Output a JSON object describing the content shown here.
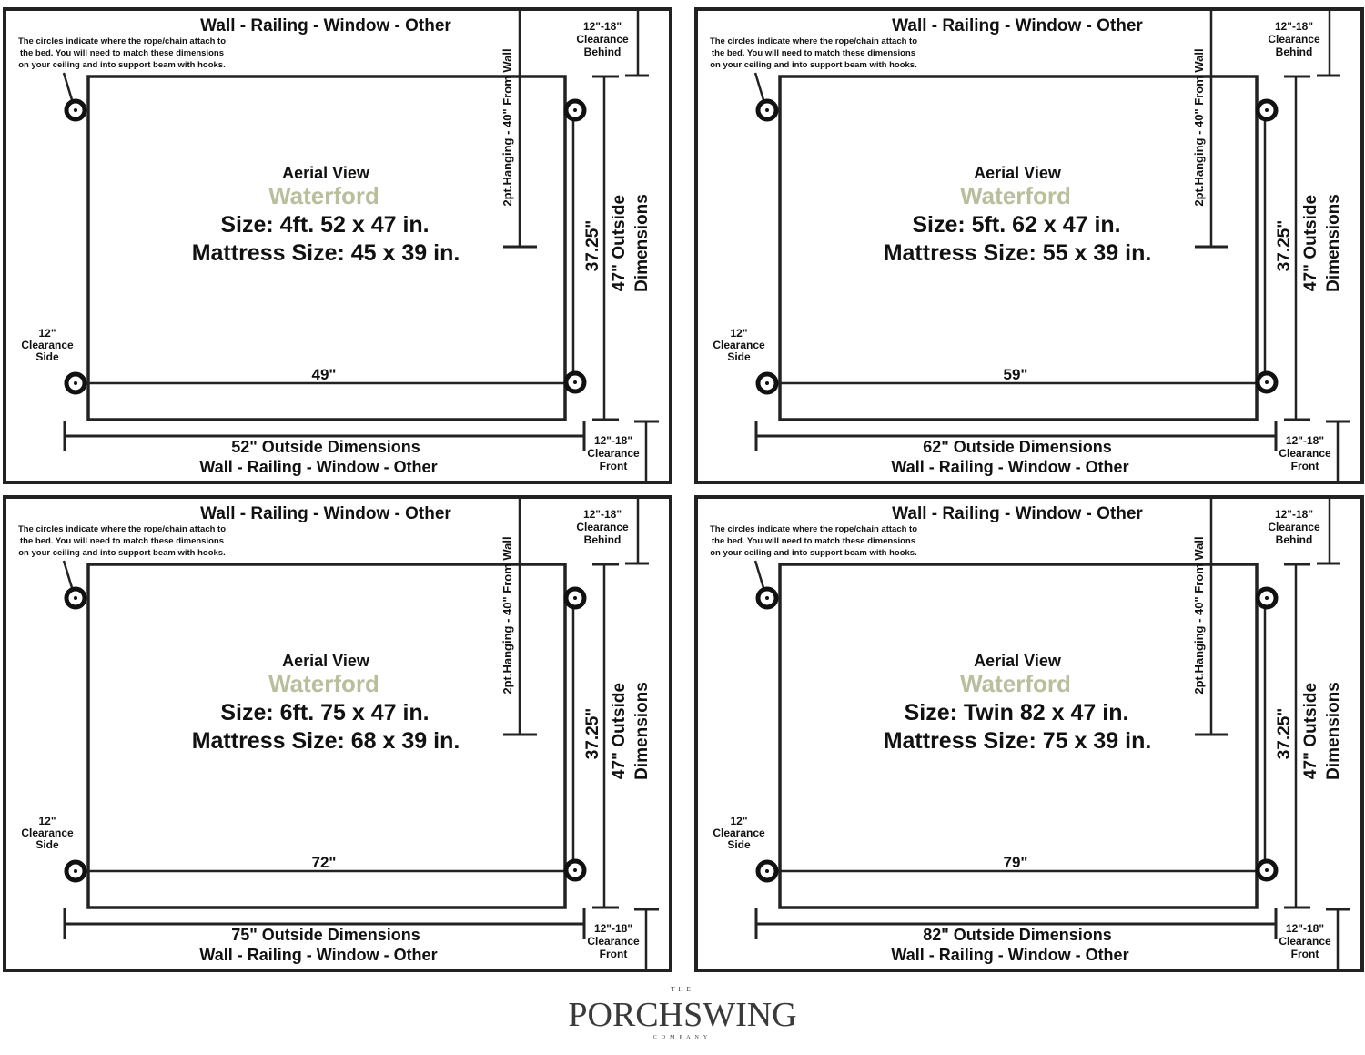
{
  "colors": {
    "line": "#222222",
    "model_name": "#b9bf9c",
    "logo": "#3a3a3a"
  },
  "common": {
    "edge_label": "Wall - Railing - Window - Other",
    "note": [
      "The circles indicate where the rope/chain attach to",
      "the bed. You will need to match these dimensions",
      "on your ceiling and into support beam with hooks."
    ],
    "clearance_behind": [
      "12\"-18\"",
      "Clearance",
      "Behind"
    ],
    "clearance_front": [
      "12\"-18\"",
      "Clearance",
      "Front"
    ],
    "clearance_side": [
      "12\"",
      "Clearance",
      "Side"
    ],
    "hanging": "2pt.Hanging - 40\" From Wall",
    "depth_inner": "37.25\"",
    "depth_outer": [
      "47\" Outside",
      "Dimensions"
    ],
    "view": "Aerial View",
    "model": "Waterford"
  },
  "panels": [
    {
      "size": "Size: 4ft. 52 x 47 in.",
      "mattress": "Mattress Size: 45 x 39 in.",
      "inner_width": "49\"",
      "outer_width": "52\" Outside Dimensions"
    },
    {
      "size": "Size: 5ft. 62 x 47 in.",
      "mattress": "Mattress Size: 55 x 39 in.",
      "inner_width": "59\"",
      "outer_width": "62\" Outside Dimensions"
    },
    {
      "size": "Size: 6ft. 75 x 47 in.",
      "mattress": "Mattress Size: 68 x 39 in.",
      "inner_width": "72\"",
      "outer_width": "75\" Outside Dimensions"
    },
    {
      "size": "Size:  Twin 82 x 47 in.",
      "mattress": "Mattress Size: 75 x 39 in.",
      "inner_width": "79\"",
      "outer_width": "82\" Outside Dimensions"
    }
  ],
  "logo": {
    "top": "THE",
    "main": "PORCHSWING",
    "bottom": "COMPANY"
  }
}
